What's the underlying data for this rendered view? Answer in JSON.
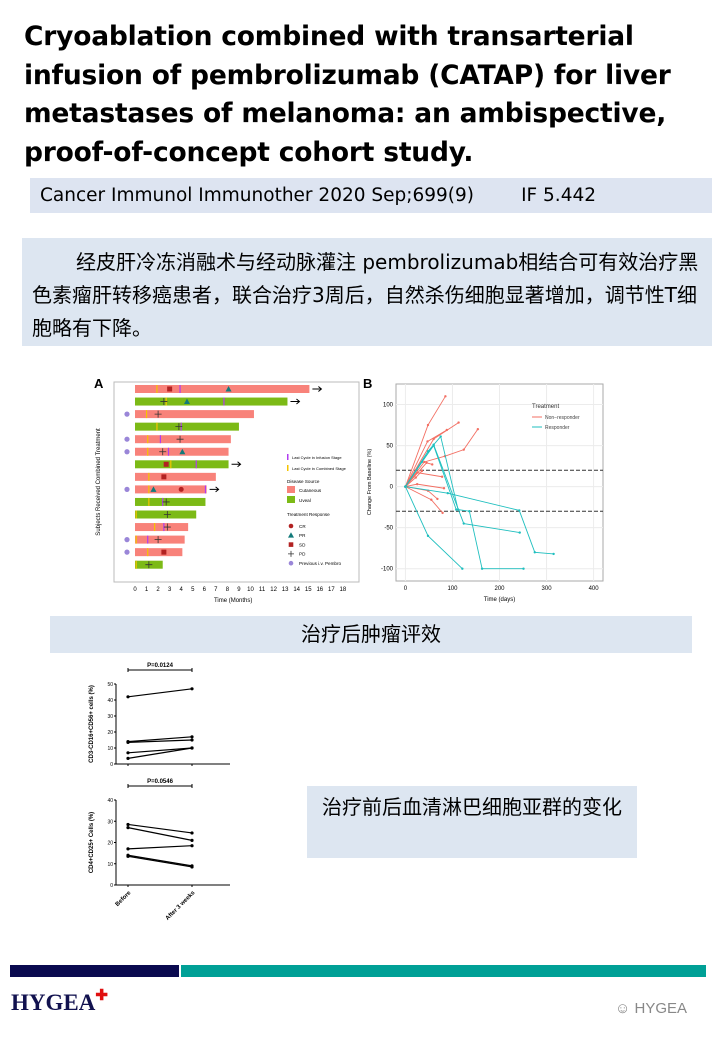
{
  "title": "Cryoablation combined with transarterial infusion of pembrolizumab (CATAP) for liver metastases of melanoma: an ambispective, proof-of-concept cohort study.",
  "citation": {
    "journal": "Cancer Immunol Immunother 2020 Sep;699(9)",
    "impact_factor": "IF 5.442"
  },
  "summary_cn": "经皮肝冷冻消融术与经动脉灌注 pembrolizumab相结合可有效治疗黑色素瘤肝转移癌患者，联合治疗3周后，自然杀伤细胞显著增加，调节性T细胞略有下降。",
  "caption_response": "治疗后肿瘤评效",
  "caption_lymph": "治疗前后血清淋巴细胞亚群的变化",
  "footer": {
    "logo": "HYGEA",
    "watermark": "HYGEA"
  },
  "colors": {
    "cutaneous": "#f8827a",
    "uveal": "#7cba16",
    "responder": "#1fbfbf",
    "non_responder": "#f36f63",
    "navy": "#0a0a4f",
    "teal": "#00a096",
    "box": "#dde6f1"
  },
  "chart_data": [
    {
      "type": "swimmer",
      "panel": "A",
      "ylabel": "Subjects Received Combined Treatment",
      "xlabel": "Time (Months)",
      "xlim": [
        0,
        18
      ],
      "xticks": [
        0,
        1,
        2,
        3,
        4,
        5,
        6,
        7,
        8,
        9,
        10,
        11,
        12,
        13,
        14,
        15,
        16,
        17,
        18
      ],
      "legend": {
        "infusion": "Last Cycle in Infusion Stage",
        "combined": "Last Cycle in Combined Stage",
        "source_title": "Disease Source",
        "cutaneous": "Cutaneous",
        "uveal": "Uveal",
        "response_title": "Treatment Response",
        "CR": "CR",
        "PR": "PR",
        "SD": "SD",
        "PD": "PD",
        "prev": "Previous i.v. Pembro"
      },
      "rows": [
        {
          "src": "C",
          "end": 15.1,
          "combined": 1.9,
          "infusion": 3.9,
          "resp": [
            [
              "SD",
              3.0
            ],
            [
              "PR",
              8.1
            ]
          ],
          "arrow": true,
          "prev": false
        },
        {
          "src": "U",
          "end": 13.2,
          "combined": 2.7,
          "infusion": 7.7,
          "resp": [
            [
              "PD",
              2.5
            ],
            [
              "PR",
              4.5
            ]
          ],
          "arrow": true,
          "prev": false
        },
        {
          "src": "C",
          "end": 10.3,
          "combined": 1.0,
          "infusion": null,
          "resp": [
            [
              "PD",
              2.0
            ]
          ],
          "arrow": false,
          "prev": true
        },
        {
          "src": "U",
          "end": 9.0,
          "combined": 1.9,
          "infusion": 4.0,
          "resp": [
            [
              "PD",
              3.8
            ]
          ],
          "arrow": false,
          "prev": false
        },
        {
          "src": "C",
          "end": 8.3,
          "combined": 1.1,
          "infusion": 2.2,
          "resp": [
            [
              "PD",
              3.9
            ]
          ],
          "arrow": false,
          "prev": true
        },
        {
          "src": "C",
          "end": 8.1,
          "combined": 1.1,
          "infusion": 2.9,
          "resp": [
            [
              "PD",
              2.4
            ],
            [
              "PR",
              4.1
            ]
          ],
          "arrow": false,
          "prev": true
        },
        {
          "src": "U",
          "end": 8.1,
          "combined": 3.1,
          "infusion": 5.3,
          "resp": [
            [
              "SD",
              2.7
            ]
          ],
          "arrow": true,
          "prev": false
        },
        {
          "src": "C",
          "end": 7.0,
          "combined": 1.2,
          "infusion": null,
          "resp": [
            [
              "SD",
              2.5
            ]
          ],
          "arrow": false,
          "prev": false
        },
        {
          "src": "C",
          "end": 6.2,
          "combined": 1.2,
          "infusion": 6.1,
          "resp": [
            [
              "PR",
              1.6
            ],
            [
              "CR",
              4.0
            ]
          ],
          "arrow": true,
          "prev": true
        },
        {
          "src": "U",
          "end": 6.1,
          "combined": 1.2,
          "infusion": 2.4,
          "resp": [
            [
              "PD",
              2.7
            ]
          ],
          "arrow": false,
          "prev": false
        },
        {
          "src": "U",
          "end": 5.3,
          "combined": 0.1,
          "infusion": null,
          "resp": [
            [
              "PD",
              2.8
            ]
          ],
          "arrow": false,
          "prev": false
        },
        {
          "src": "C",
          "end": 4.6,
          "combined": 1.7,
          "infusion": 2.5,
          "resp": [
            [
              "PD",
              2.8
            ]
          ],
          "arrow": false,
          "prev": false
        },
        {
          "src": "C",
          "end": 4.3,
          "combined": 0.1,
          "infusion": 1.1,
          "resp": [
            [
              "PD",
              2.0
            ]
          ],
          "arrow": false,
          "prev": true
        },
        {
          "src": "C",
          "end": 4.1,
          "combined": 1.1,
          "infusion": null,
          "resp": [
            [
              "SD",
              2.5
            ]
          ],
          "arrow": false,
          "prev": true
        },
        {
          "src": "U",
          "end": 2.4,
          "combined": 0.1,
          "infusion": null,
          "resp": [
            [
              "PD",
              1.2
            ]
          ],
          "arrow": false,
          "prev": false
        }
      ]
    },
    {
      "type": "line",
      "panel": "B",
      "xlabel": "Time (days)",
      "ylabel": "Change From Baseline (%)",
      "xlim": [
        -20,
        420
      ],
      "ylim": [
        -115,
        125
      ],
      "xticks": [
        0,
        100,
        200,
        300,
        400
      ],
      "yticks": [
        -100,
        -50,
        0,
        50,
        100
      ],
      "thresholds": [
        20,
        -30
      ],
      "legend_title": "Treatment",
      "legend_position": "top-right",
      "series": [
        {
          "name": "Non−responder",
          "lines": [
            [
              [
                0,
                0
              ],
              [
                48,
                75
              ],
              [
                85,
                110
              ]
            ],
            [
              [
                0,
                0
              ],
              [
                47,
                55
              ],
              [
                88,
                69
              ]
            ],
            [
              [
                0,
                0
              ],
              [
                60,
                58
              ],
              [
                113,
                78
              ]
            ],
            [
              [
                0,
                0
              ],
              [
                40,
                30
              ],
              [
                84,
                37
              ],
              [
                124,
                45
              ],
              [
                154,
                70
              ]
            ],
            [
              [
                0,
                0
              ],
              [
                45,
                29
              ],
              [
                57,
                27
              ]
            ],
            [
              [
                0,
                0
              ],
              [
                25,
                17
              ],
              [
                78,
                12
              ]
            ],
            [
              [
                0,
                0
              ],
              [
                22,
                11
              ],
              [
                35,
                19
              ]
            ],
            [
              [
                0,
                0
              ],
              [
                25,
                3
              ],
              [
                82,
                -2
              ]
            ],
            [
              [
                0,
                0
              ],
              [
                48,
                -5
              ],
              [
                68,
                -15
              ]
            ],
            [
              [
                0,
                0
              ],
              [
                55,
                -16
              ],
              [
                79,
                -32
              ]
            ]
          ]
        },
        {
          "name": "Responder",
          "lines": [
            [
              [
                0,
                0
              ],
              [
                48,
                43
              ],
              [
                75,
                61
              ],
              [
                112,
                -28
              ],
              [
                136,
                -30
              ],
              [
                163,
                -100
              ],
              [
                251,
                -100
              ]
            ],
            [
              [
                0,
                0
              ],
              [
                60,
                51
              ],
              [
                124,
                -45
              ],
              [
                243,
                -56
              ]
            ],
            [
              [
                0,
                0
              ],
              [
                90,
                -8
              ],
              [
                242,
                -29
              ],
              [
                275,
                -80
              ],
              [
                315,
                -82
              ]
            ],
            [
              [
                0,
                0
              ],
              [
                48,
                -60
              ],
              [
                121,
                -100
              ]
            ],
            [
              [
                0,
                0
              ],
              [
                35,
                30
              ],
              [
                60,
                50
              ],
              [
                108,
                -28
              ]
            ]
          ]
        }
      ]
    },
    {
      "type": "paired",
      "panel": "C1",
      "ylabel": "CD3-CD16+CD56+ cells (%)",
      "ylim": [
        0,
        50
      ],
      "yticks": [
        0,
        10,
        20,
        30,
        40,
        50
      ],
      "categories": [
        "Before",
        "After 3 weeks"
      ],
      "pvalue": "P=0.0124",
      "pairs": [
        [
          42,
          47
        ],
        [
          14,
          17
        ],
        [
          13.5,
          15
        ],
        [
          7,
          10
        ],
        [
          3.5,
          10
        ]
      ]
    },
    {
      "type": "paired",
      "panel": "C2",
      "ylabel": "CD4+CD25+ Cells (%)",
      "ylim": [
        0,
        40
      ],
      "yticks": [
        0,
        10,
        20,
        30,
        40
      ],
      "categories": [
        "Before",
        "After 3 weeks"
      ],
      "pvalue": "P=0.0546",
      "pairs": [
        [
          28.5,
          24.5
        ],
        [
          27,
          21
        ],
        [
          17,
          18.5
        ],
        [
          14,
          9
        ],
        [
          13.5,
          8.5
        ]
      ]
    }
  ]
}
